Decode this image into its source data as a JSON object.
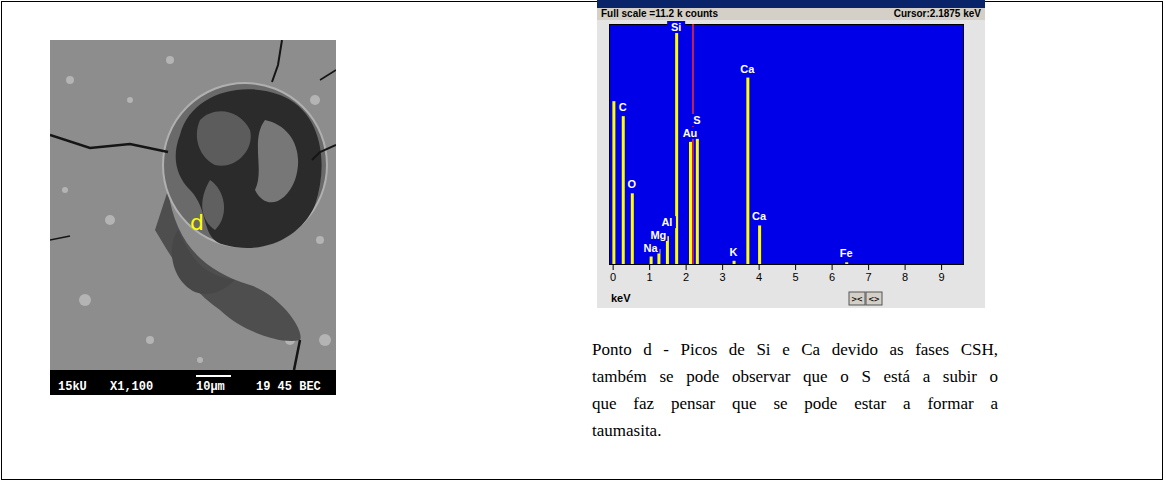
{
  "micrograph": {
    "point_label": "d",
    "info_bar": [
      "15kU",
      "X1,100",
      "10µm",
      "19 45 BEC"
    ]
  },
  "chart_data": {
    "type": "spectrum",
    "title": "Full scale =11.2 k counts",
    "cursor_label": "Cursor:2.1875 keV",
    "cursor": 2.1875,
    "x_label": "keV",
    "x": [
      0.02,
      0.277,
      0.525,
      1.041,
      1.254,
      1.487,
      1.74,
      2.12,
      2.307,
      3.313,
      3.691,
      4.013,
      6.4
    ],
    "values": [
      7.6,
      6.9,
      3.3,
      0.35,
      0.7,
      1.3,
      10.9,
      5.7,
      6.3,
      0.15,
      8.7,
      1.8,
      0.08
    ],
    "labels": [
      null,
      "C",
      "O",
      "Na",
      "Mg",
      "Al",
      "Si",
      "Au",
      "S",
      "K",
      "Ca",
      "Ca",
      "Fe"
    ],
    "xlim": [
      -0.1,
      9.6
    ],
    "xticks": [
      0,
      1,
      2,
      3,
      4,
      5,
      6,
      7,
      8,
      9
    ],
    "ylim": [
      0,
      11.2
    ],
    "tick_labels": "x",
    "color": "#ffff00",
    "buttons": [
      "><",
      "<>"
    ]
  },
  "caption_lines": [
    "Ponto d - Picos de Si e Ca devido as fases CSH,",
    "também se pode observar que o S está a subir o",
    "que faz pensar que se pode estar a formar a",
    "taumasita."
  ]
}
